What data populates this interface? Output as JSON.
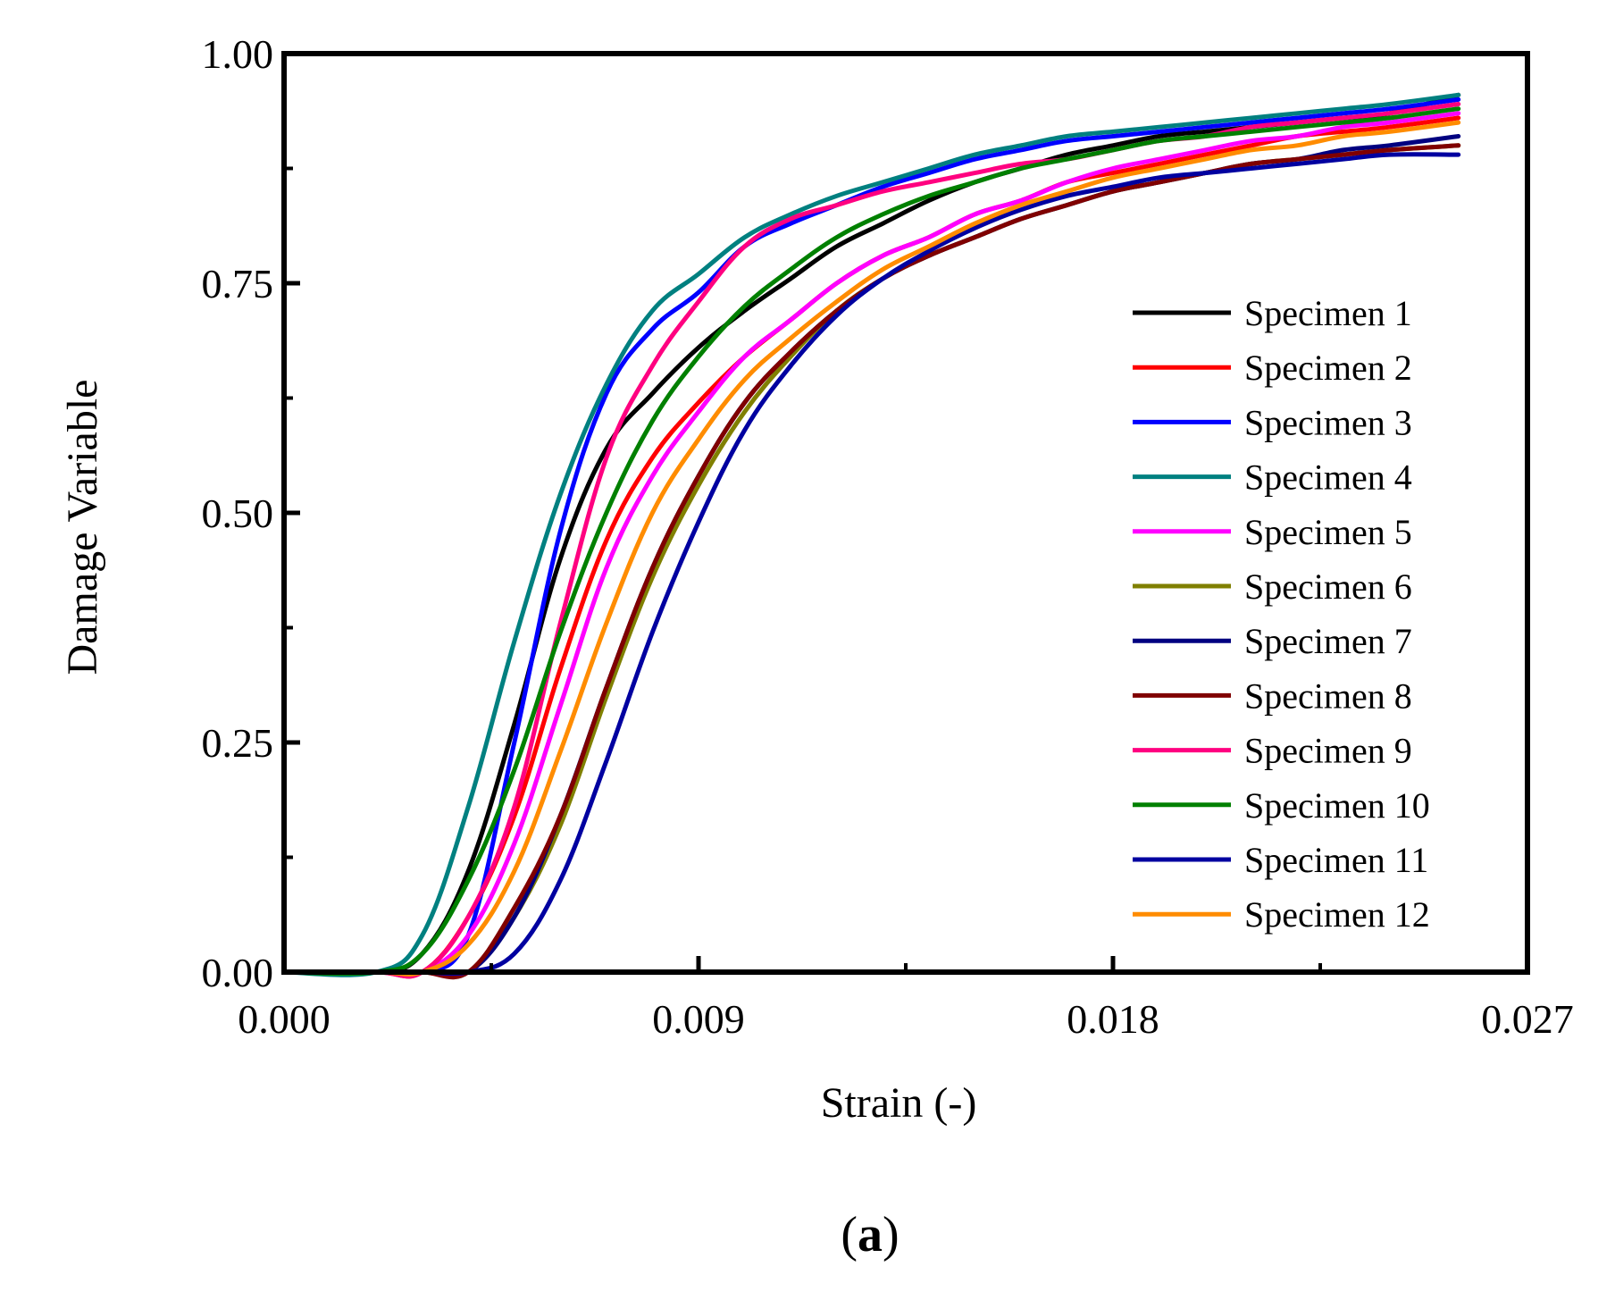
{
  "chart_data": {
    "type": "line",
    "title": "",
    "xlabel": "Strain (-)",
    "ylabel": "Damage Variable",
    "xlim": [
      0,
      0.027
    ],
    "ylim": [
      0,
      1.0
    ],
    "x_ticks": [
      "0.000",
      "0.009",
      "0.018",
      "0.027"
    ],
    "y_ticks": [
      "0.00",
      "0.25",
      "0.50",
      "0.75",
      "1.00"
    ],
    "panel_label_open": "(",
    "panel_label_letter": "a",
    "panel_label_close": ")",
    "legend_position": "right",
    "x": [
      0,
      0.002,
      0.003,
      0.004,
      0.005,
      0.006,
      0.007,
      0.008,
      0.009,
      0.01,
      0.011,
      0.012,
      0.013,
      0.014,
      0.015,
      0.016,
      0.017,
      0.018,
      0.019,
      0.02,
      0.021,
      0.022,
      0.023,
      0.024,
      0.0255
    ],
    "series": [
      {
        "name": "Specimen 1",
        "color": "#000000",
        "values": [
          0,
          0,
          0.02,
          0.11,
          0.27,
          0.45,
          0.57,
          0.63,
          0.68,
          0.72,
          0.755,
          0.79,
          0.815,
          0.84,
          0.86,
          0.875,
          0.89,
          0.9,
          0.91,
          0.915,
          0.92,
          0.925,
          0.93,
          0.935,
          0.955
        ]
      },
      {
        "name": "Specimen 2",
        "color": "#ff0000",
        "values": [
          0,
          0,
          0,
          0.06,
          0.17,
          0.33,
          0.47,
          0.56,
          0.62,
          0.67,
          0.71,
          0.75,
          0.78,
          0.8,
          0.825,
          0.84,
          0.86,
          0.87,
          0.88,
          0.89,
          0.9,
          0.91,
          0.915,
          0.92,
          0.93
        ]
      },
      {
        "name": "Specimen 3",
        "color": "#0000ff",
        "values": [
          0,
          0,
          0,
          0.04,
          0.25,
          0.48,
          0.63,
          0.7,
          0.74,
          0.79,
          0.815,
          0.835,
          0.855,
          0.87,
          0.885,
          0.895,
          0.905,
          0.91,
          0.915,
          0.92,
          0.925,
          0.93,
          0.935,
          0.94,
          0.95
        ]
      },
      {
        "name": "Specimen 4",
        "color": "#008080",
        "values": [
          0,
          0,
          0.04,
          0.18,
          0.36,
          0.52,
          0.64,
          0.72,
          0.76,
          0.8,
          0.825,
          0.845,
          0.86,
          0.875,
          0.89,
          0.9,
          0.91,
          0.915,
          0.92,
          0.925,
          0.93,
          0.935,
          0.94,
          0.945,
          0.955
        ]
      },
      {
        "name": "Specimen 5",
        "color": "#ff00ff",
        "values": [
          0,
          0,
          0,
          0.04,
          0.14,
          0.29,
          0.44,
          0.54,
          0.61,
          0.67,
          0.71,
          0.75,
          0.78,
          0.8,
          0.825,
          0.84,
          0.86,
          0.875,
          0.885,
          0.895,
          0.905,
          0.91,
          0.92,
          0.925,
          0.935
        ]
      },
      {
        "name": "Specimen 6",
        "color": "#808000",
        "values": [
          0,
          0,
          0,
          0,
          0.06,
          0.16,
          0.3,
          0.43,
          0.53,
          0.61,
          0.67,
          0.72,
          0.755,
          0.78,
          0.8,
          0.82,
          0.835,
          0.85,
          0.86,
          0.87,
          0.88,
          0.885,
          0.89,
          0.895,
          0.9
        ]
      },
      {
        "name": "Specimen 7",
        "color": "#000080",
        "values": [
          0,
          0,
          0,
          0,
          0.06,
          0.17,
          0.31,
          0.44,
          0.54,
          0.62,
          0.675,
          0.72,
          0.755,
          0.78,
          0.8,
          0.82,
          0.835,
          0.85,
          0.86,
          0.87,
          0.88,
          0.885,
          0.895,
          0.9,
          0.91
        ]
      },
      {
        "name": "Specimen 8",
        "color": "#800000",
        "values": [
          0,
          0,
          0,
          0,
          0.07,
          0.17,
          0.31,
          0.44,
          0.54,
          0.62,
          0.675,
          0.72,
          0.755,
          0.78,
          0.8,
          0.82,
          0.835,
          0.85,
          0.86,
          0.87,
          0.88,
          0.885,
          0.89,
          0.895,
          0.9
        ]
      },
      {
        "name": "Specimen 9",
        "color": "#ff0080",
        "values": [
          0,
          0,
          0,
          0.06,
          0.18,
          0.38,
          0.56,
          0.66,
          0.73,
          0.79,
          0.82,
          0.835,
          0.85,
          0.86,
          0.87,
          0.88,
          0.885,
          0.895,
          0.905,
          0.91,
          0.92,
          0.925,
          0.93,
          0.935,
          0.945
        ]
      },
      {
        "name": "Specimen 10",
        "color": "#008000",
        "values": [
          0,
          0,
          0.02,
          0.1,
          0.22,
          0.37,
          0.5,
          0.6,
          0.67,
          0.725,
          0.765,
          0.8,
          0.825,
          0.845,
          0.86,
          0.875,
          0.885,
          0.895,
          0.905,
          0.91,
          0.915,
          0.92,
          0.925,
          0.93,
          0.94
        ]
      },
      {
        "name": "Specimen 11",
        "color": "#0000a0",
        "values": [
          0,
          0,
          0,
          0,
          0.02,
          0.1,
          0.23,
          0.37,
          0.49,
          0.59,
          0.66,
          0.715,
          0.755,
          0.785,
          0.81,
          0.83,
          0.845,
          0.855,
          0.865,
          0.87,
          0.875,
          0.88,
          0.885,
          0.89,
          0.89
        ]
      },
      {
        "name": "Specimen 12",
        "color": "#ff8c00",
        "values": [
          0,
          0,
          0,
          0.03,
          0.11,
          0.24,
          0.38,
          0.5,
          0.58,
          0.645,
          0.69,
          0.73,
          0.765,
          0.79,
          0.815,
          0.835,
          0.85,
          0.865,
          0.875,
          0.885,
          0.895,
          0.9,
          0.91,
          0.915,
          0.925
        ]
      }
    ]
  }
}
